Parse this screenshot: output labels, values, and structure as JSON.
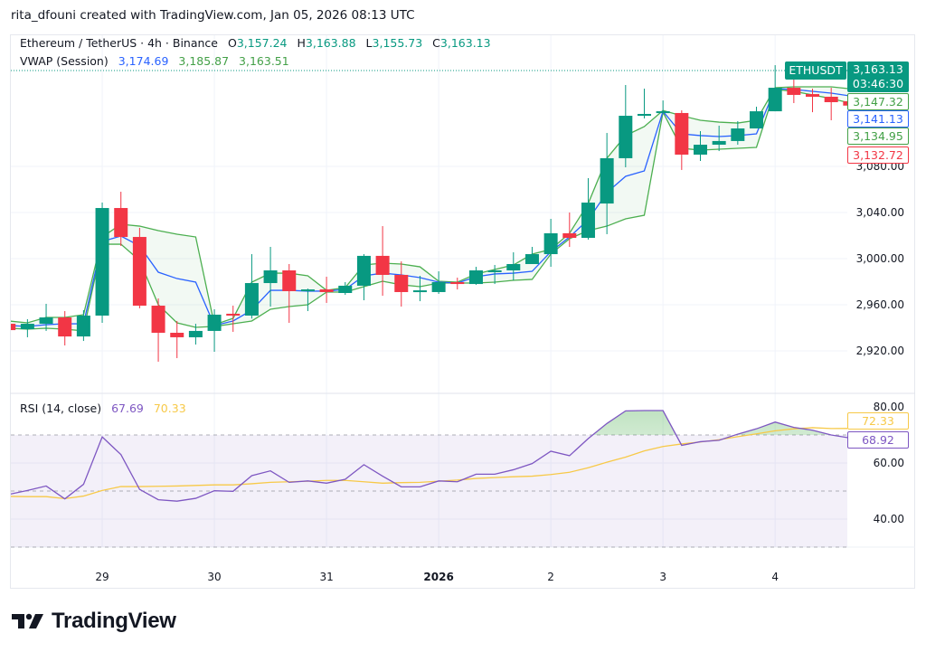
{
  "attribution": "rita_dfouni created with TradingView.com, Jan 05, 2026 08:13 UTC",
  "legend": {
    "symbol": "Ethereum / TetherUS · 4h · Binance",
    "o_label": "O",
    "o": "3,157.24",
    "h_label": "H",
    "h": "3,163.88",
    "l_label": "L",
    "l": "3,155.73",
    "c_label": "C",
    "c": "3,163.13",
    "vwap_label": "VWAP (Session)",
    "vwap": "3,174.69",
    "vwap_upper": "3,185.87",
    "vwap_lower": "3,163.51"
  },
  "rsi_legend": {
    "label": "RSI (14, close)",
    "rsi": "67.69",
    "ma": "70.33"
  },
  "price_tags": {
    "symbol": "ETHUSDT",
    "last": "3,163.13",
    "countdown": "03:46:30",
    "vwap_upper": "3,147.32",
    "vwap": "3,141.13",
    "vwap_lower": "3,134.95",
    "last_visible_close": "3,132.72"
  },
  "rsi_tags": {
    "ma": "72.33",
    "rsi": "68.92"
  },
  "branding": {
    "logo_text": "TradingView"
  },
  "colors": {
    "up": "#089981",
    "down": "#f23645",
    "vwap": "#2962ff",
    "bands": "#4caf50",
    "rsi": "#7e57c2",
    "rsi_ma": "#f7c948",
    "grid": "#f0f3fa"
  },
  "chart_data": [
    {
      "type": "candlestick",
      "interval": "4h",
      "price_axis": {
        "ticks": [
          "3,080.00",
          "3,040.00",
          "3,000.00",
          "2,960.00",
          "2,920.00"
        ],
        "tick_values": [
          3080,
          3040,
          3000,
          2960,
          2920
        ]
      },
      "time_axis": {
        "ticks": [
          {
            "label": "29",
            "time": "2025-12-29 00:00",
            "bold": false
          },
          {
            "label": "30",
            "time": "2025-12-30 00:00",
            "bold": false
          },
          {
            "label": "31",
            "time": "2025-12-31 00:00",
            "bold": false
          },
          {
            "label": "2026",
            "time": "2026-01-01 00:00",
            "bold": true
          },
          {
            "label": "2",
            "time": "2026-01-02 00:00",
            "bold": false
          },
          {
            "label": "3",
            "time": "2026-01-03 00:00",
            "bold": false
          },
          {
            "label": "4",
            "time": "2026-01-04 00:00",
            "bold": false
          }
        ]
      },
      "time": [
        "2025-12-28 04:00",
        "2025-12-28 08:00",
        "2025-12-28 12:00",
        "2025-12-28 16:00",
        "2025-12-28 20:00",
        "2025-12-29 00:00",
        "2025-12-29 04:00",
        "2025-12-29 08:00",
        "2025-12-29 12:00",
        "2025-12-29 16:00",
        "2025-12-29 20:00",
        "2025-12-30 00:00",
        "2025-12-30 04:00",
        "2025-12-30 08:00",
        "2025-12-30 12:00",
        "2025-12-30 16:00",
        "2025-12-30 20:00",
        "2025-12-31 00:00",
        "2025-12-31 04:00",
        "2025-12-31 08:00",
        "2025-12-31 12:00",
        "2025-12-31 16:00",
        "2025-12-31 20:00",
        "2026-01-01 00:00",
        "2026-01-01 04:00",
        "2026-01-01 08:00",
        "2026-01-01 12:00",
        "2026-01-01 16:00",
        "2026-01-01 20:00",
        "2026-01-02 00:00",
        "2026-01-02 04:00",
        "2026-01-02 08:00",
        "2026-01-02 12:00",
        "2026-01-02 16:00",
        "2026-01-02 20:00",
        "2026-01-03 00:00",
        "2026-01-03 04:00",
        "2026-01-03 08:00",
        "2026-01-03 12:00",
        "2026-01-03 16:00",
        "2026-01-03 20:00",
        "2026-01-04 00:00",
        "2026-01-04 04:00",
        "2026-01-04 08:00",
        "2026-01-04 12:00",
        "2026-01-04 16:00"
      ],
      "ohlc": [
        [
          2943.5,
          2945.1,
          2936.5,
          2938.0
        ],
        [
          2938.8,
          2947.5,
          2931.8,
          2943.5
        ],
        [
          2943.5,
          2960.8,
          2937.3,
          2949.0
        ],
        [
          2949.0,
          2954.5,
          2924.7,
          2932.5
        ],
        [
          2932.5,
          2955.3,
          2928.6,
          2950.6
        ],
        [
          2950.6,
          3048.6,
          2944.3,
          3043.9
        ],
        [
          3043.9,
          3058.0,
          3011.0,
          3018.8
        ],
        [
          3018.8,
          3026.7,
          2956.9,
          2959.2
        ],
        [
          2959.2,
          2965.5,
          2910.6,
          2935.7
        ],
        [
          2935.7,
          2945.9,
          2913.7,
          2931.8
        ],
        [
          2931.8,
          2943.5,
          2925.5,
          2937.3
        ],
        [
          2937.3,
          2956.1,
          2919.2,
          2951.4
        ],
        [
          2952.2,
          2959.2,
          2936.5,
          2950.6
        ],
        [
          2950.6,
          3003.9,
          2948.0,
          2978.8
        ],
        [
          2978.8,
          3010.2,
          2958.4,
          2989.8
        ],
        [
          2989.8,
          2995.3,
          2944.3,
          2971.8
        ],
        [
          2971.8,
          2974.0,
          2954.5,
          2973.3
        ],
        [
          2973.3,
          2984.3,
          2961.6,
          2971.0
        ],
        [
          2970.2,
          2979.6,
          2968.6,
          2976.5
        ],
        [
          2976.5,
          3003.9,
          2963.9,
          3002.4
        ],
        [
          3002.4,
          3028.2,
          2967.8,
          2985.9
        ],
        [
          2985.9,
          2997.6,
          2958.4,
          2971.0
        ],
        [
          2971.0,
          2985.1,
          2963.1,
          2972.5
        ],
        [
          2971.0,
          2989.0,
          2969.4,
          2979.6
        ],
        [
          2979.6,
          2983.5,
          2973.3,
          2978.0
        ],
        [
          2978.0,
          2992.9,
          2977.3,
          2989.8
        ],
        [
          2989.0,
          2994.5,
          2978.0,
          2989.8
        ],
        [
          2989.8,
          3005.5,
          2981.2,
          2995.3
        ],
        [
          2995.3,
          3010.2,
          2995.3,
          3003.9
        ],
        [
          3003.9,
          3034.5,
          2992.9,
          3022.0
        ],
        [
          3022.0,
          3040.0,
          3010.2,
          3018.0
        ],
        [
          3018.0,
          3069.8,
          3016.5,
          3048.6
        ],
        [
          3047.8,
          3109.0,
          3021.2,
          3087.1
        ],
        [
          3087.1,
          3150.6,
          3079.2,
          3123.9
        ],
        [
          3123.9,
          3147.4,
          3121.6,
          3125.5
        ],
        [
          3127.0,
          3137.2,
          3126.3,
          3127.8
        ],
        [
          3126.3,
          3128.6,
          3076.9,
          3090.2
        ],
        [
          3090.2,
          3110.6,
          3084.7,
          3098.8
        ],
        [
          3098.8,
          3115.3,
          3093.3,
          3102.0
        ],
        [
          3102.0,
          3119.2,
          3098.8,
          3112.9
        ],
        [
          3112.9,
          3131.8,
          3112.9,
          3127.8
        ],
        [
          3127.8,
          3167.8,
          3127.8,
          3148.2
        ],
        [
          3148.2,
          3155.3,
          3134.9,
          3142.0
        ],
        [
          3142.7,
          3147.4,
          3127.0,
          3140.4
        ],
        [
          3140.4,
          3148.2,
          3120.0,
          3135.7
        ],
        [
          3136.5,
          3137.0,
          3131.0,
          3132.72
        ]
      ],
      "vwap": [
        2942.0,
        2941.2,
        2942.7,
        2943.5,
        2943.5,
        3014.9,
        3019.6,
        3011.0,
        2988.2,
        2982.7,
        2979.6,
        2942.0,
        2945.9,
        2955.3,
        2972.5,
        2972.5,
        2971.8,
        2971.8,
        2973.3,
        2985.1,
        2987.4,
        2985.9,
        2983.5,
        2979.6,
        2978.8,
        2984.3,
        2986.7,
        2987.4,
        2989.0,
        3006.0,
        3018.8,
        3033.7,
        3057.3,
        3071.4,
        3076.1,
        3127.8,
        3108.2,
        3106.7,
        3105.9,
        3106.7,
        3108.2,
        3147.4,
        3146.7,
        3145.1,
        3143.5,
        3141.13
      ],
      "vwap_upper": [
        2945.9,
        2944.3,
        2949.0,
        2949.0,
        2951.4,
        3018.8,
        3029.8,
        3028.2,
        3024.3,
        3021.2,
        3018.8,
        2942.7,
        2948.2,
        2979.6,
        2987.4,
        2987.4,
        2985.1,
        2972.5,
        2974.9,
        2994.5,
        2996.1,
        2995.3,
        2992.9,
        2980.4,
        2979.6,
        2986.7,
        2990.6,
        2994.5,
        3003.9,
        3008.0,
        3022.0,
        3047.8,
        3087.1,
        3106.7,
        3114.5,
        3128.5,
        3123.9,
        3120.0,
        3118.4,
        3117.6,
        3120.0,
        3148.2,
        3149.0,
        3149.0,
        3149.0,
        3147.32
      ],
      "vwap_lower": [
        2939.6,
        2938.8,
        2939.6,
        2938.8,
        2937.3,
        3012.5,
        3012.5,
        2998.4,
        2960.0,
        2944.3,
        2940.4,
        2941.2,
        2943.5,
        2945.9,
        2956.1,
        2958.4,
        2960.0,
        2971.0,
        2971.0,
        2975.7,
        2980.4,
        2977.3,
        2975.7,
        2978.8,
        2978.8,
        2978.8,
        2979.6,
        2981.2,
        2982.0,
        3004.0,
        3017.3,
        3024.3,
        3028.2,
        3034.5,
        3037.6,
        3127.0,
        3095.7,
        3094.1,
        3094.9,
        3095.7,
        3096.5,
        3146.7,
        3145.1,
        3142.0,
        3138.8,
        3134.95
      ],
      "last_price": 3163.13
    },
    {
      "type": "line",
      "pane": "RSI (14, close)",
      "y_axis": {
        "ticks": [
          "80.00",
          "60.00",
          "40.00"
        ],
        "tick_values": [
          80,
          60,
          40
        ]
      },
      "bands": {
        "upper": 70,
        "middle": 50,
        "lower": 30
      },
      "series": [
        {
          "name": "RSI",
          "values": [
            48.8,
            50.2,
            51.8,
            47.2,
            52.4,
            69.3,
            63.0,
            50.6,
            46.9,
            46.4,
            47.4,
            50.1,
            49.9,
            55.5,
            57.2,
            53.1,
            53.6,
            52.8,
            54.2,
            59.4,
            55.3,
            51.5,
            51.5,
            53.6,
            53.3,
            56.0,
            56.0,
            57.6,
            59.8,
            64.2,
            62.6,
            68.7,
            74.1,
            78.6,
            78.7,
            78.7,
            66.3,
            67.6,
            68.1,
            70.3,
            72.2,
            74.6,
            72.7,
            71.7,
            70.0,
            68.92
          ]
        },
        {
          "name": "RSI MA",
          "values": [
            48.1,
            48.0,
            48.0,
            47.3,
            48.2,
            50.2,
            51.6,
            51.6,
            51.7,
            51.8,
            52.0,
            52.2,
            52.2,
            52.6,
            53.1,
            53.3,
            53.5,
            53.8,
            53.8,
            53.3,
            52.8,
            53.0,
            53.1,
            53.5,
            53.9,
            54.5,
            54.8,
            55.1,
            55.3,
            55.9,
            56.7,
            58.3,
            60.3,
            62.1,
            64.3,
            65.9,
            66.8,
            67.5,
            68.3,
            69.4,
            70.4,
            71.5,
            72.2,
            72.6,
            72.3,
            72.33
          ]
        }
      ]
    }
  ]
}
